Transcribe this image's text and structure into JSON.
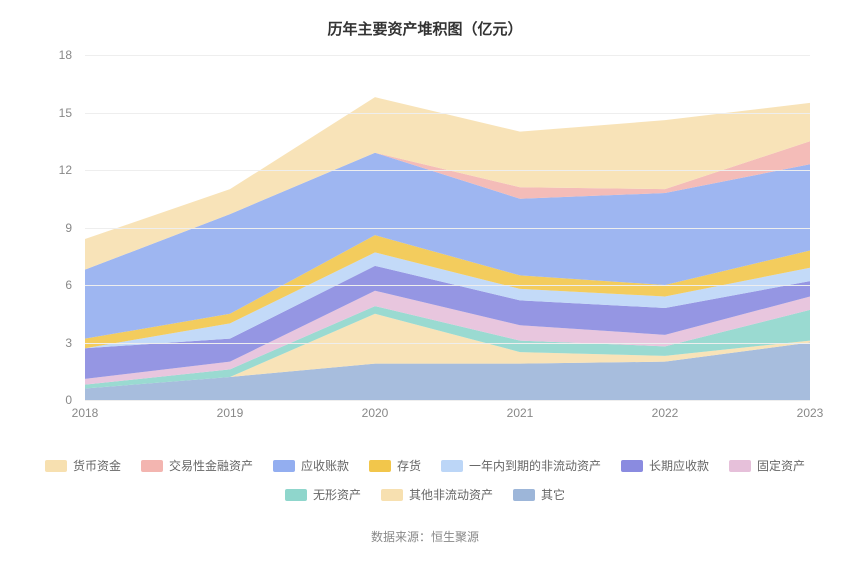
{
  "title": "历年主要资产堆积图（亿元）",
  "source_label": "数据来源：恒生聚源",
  "chart": {
    "type": "area-stacked",
    "background_color": "#ffffff",
    "grid_color": "#eeeeee",
    "axis_label_color": "#888888",
    "axis_font_size": 12,
    "title_font_size": 15,
    "title_font_weight": 700,
    "x_categories": [
      "2018",
      "2019",
      "2020",
      "2021",
      "2022",
      "2023"
    ],
    "y_min": 0,
    "y_max": 18,
    "y_tick_step": 3,
    "y_ticks": [
      0,
      3,
      6,
      9,
      12,
      15,
      18
    ],
    "series": [
      {
        "name": "其它",
        "color": "#9db6d9",
        "values": [
          0.6,
          1.2,
          1.9,
          1.9,
          2.0,
          3.0
        ]
      },
      {
        "name": "其他非流动资产",
        "color": "#f7e0b0",
        "values": [
          0.0,
          0.0,
          2.6,
          0.6,
          0.3,
          0.1
        ]
      },
      {
        "name": "无形资产",
        "color": "#8fd6cc",
        "values": [
          0.2,
          0.4,
          0.4,
          0.6,
          0.5,
          1.6
        ]
      },
      {
        "name": "固定资产",
        "color": "#e6c0da",
        "values": [
          0.3,
          0.4,
          0.8,
          0.8,
          0.6,
          0.7
        ]
      },
      {
        "name": "长期应收款",
        "color": "#8a8be0",
        "values": [
          1.6,
          1.2,
          1.3,
          1.3,
          1.4,
          0.8
        ]
      },
      {
        "name": "一年内到期的非流动资产",
        "color": "#bcd6f7",
        "values": [
          0.0,
          0.8,
          0.7,
          0.6,
          0.6,
          0.7
        ]
      },
      {
        "name": "存货",
        "color": "#f2c64b",
        "values": [
          0.5,
          0.5,
          0.9,
          0.7,
          0.6,
          0.9
        ]
      },
      {
        "name": "应收账款",
        "color": "#93aef0",
        "values": [
          3.6,
          5.2,
          4.3,
          4.0,
          4.8,
          4.5
        ]
      },
      {
        "name": "交易性金融资产",
        "color": "#f3b5b0",
        "values": [
          0.0,
          0.0,
          0.0,
          0.6,
          0.2,
          1.2
        ]
      },
      {
        "name": "货币资金",
        "color": "#f7e0b0",
        "values": [
          1.6,
          1.3,
          2.9,
          2.9,
          3.6,
          2.0
        ]
      }
    ],
    "legend_order": [
      "货币资金",
      "交易性金融资产",
      "应收账款",
      "存货",
      "一年内到期的非流动资产",
      "长期应收款",
      "固定资产",
      "无形资产",
      "其他非流动资产",
      "其它"
    ],
    "legend_colors": {
      "货币资金": "#f7e0b0",
      "交易性金融资产": "#f3b5b0",
      "应收账款": "#93aef0",
      "存货": "#f2c64b",
      "一年内到期的非流动资产": "#bcd6f7",
      "长期应收款": "#8a8be0",
      "固定资产": "#e6c0da",
      "无形资产": "#8fd6cc",
      "其他非流动资产": "#f7e0b0",
      "其它": "#9db6d9"
    },
    "area_opacity": 0.9
  }
}
